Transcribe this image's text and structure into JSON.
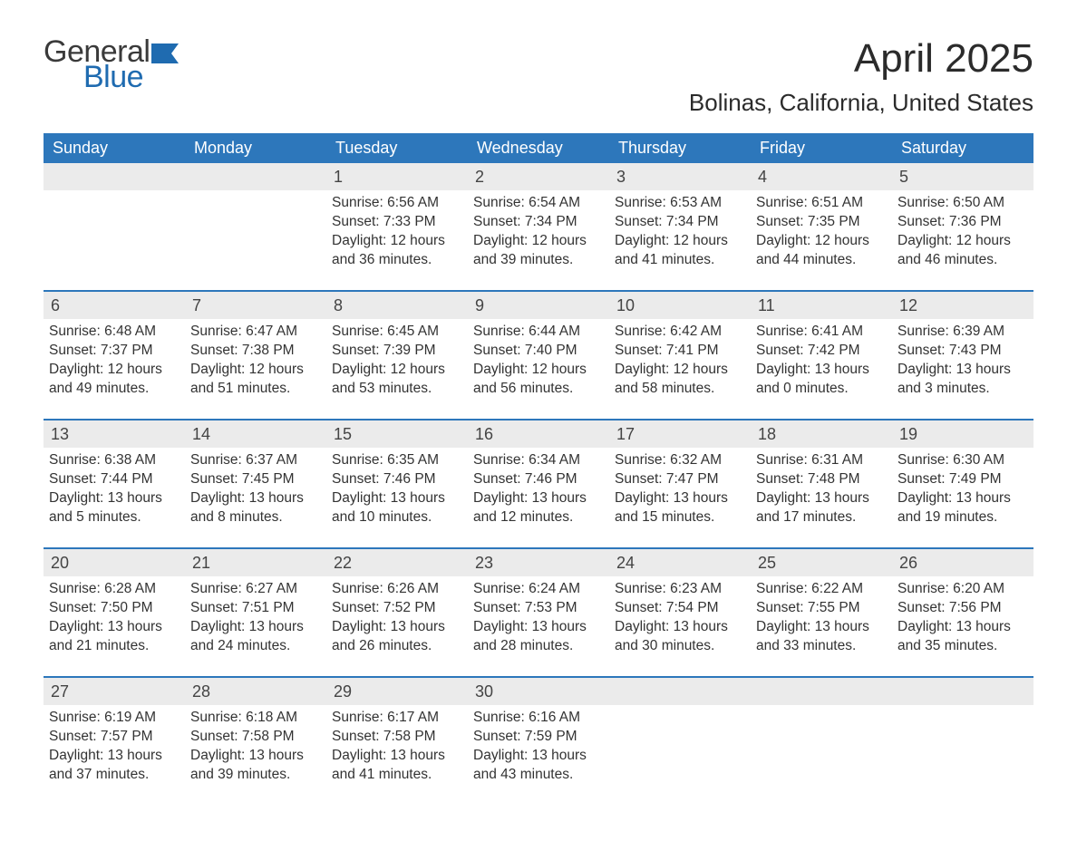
{
  "logo": {
    "text1": "General",
    "text2": "Blue",
    "flag_color": "#1f6bb0"
  },
  "title": "April 2025",
  "location": "Bolinas, California, United States",
  "colors": {
    "header_bg": "#2d77bb",
    "header_text": "#ffffff",
    "row_border": "#2d77bb",
    "daynum_bg": "#ebebeb",
    "body_text": "#333333"
  },
  "weekdays": [
    "Sunday",
    "Monday",
    "Tuesday",
    "Wednesday",
    "Thursday",
    "Friday",
    "Saturday"
  ],
  "weeks": [
    [
      {
        "day": ""
      },
      {
        "day": ""
      },
      {
        "day": "1",
        "sunrise": "Sunrise: 6:56 AM",
        "sunset": "Sunset: 7:33 PM",
        "daylight": "Daylight: 12 hours and 36 minutes."
      },
      {
        "day": "2",
        "sunrise": "Sunrise: 6:54 AM",
        "sunset": "Sunset: 7:34 PM",
        "daylight": "Daylight: 12 hours and 39 minutes."
      },
      {
        "day": "3",
        "sunrise": "Sunrise: 6:53 AM",
        "sunset": "Sunset: 7:34 PM",
        "daylight": "Daylight: 12 hours and 41 minutes."
      },
      {
        "day": "4",
        "sunrise": "Sunrise: 6:51 AM",
        "sunset": "Sunset: 7:35 PM",
        "daylight": "Daylight: 12 hours and 44 minutes."
      },
      {
        "day": "5",
        "sunrise": "Sunrise: 6:50 AM",
        "sunset": "Sunset: 7:36 PM",
        "daylight": "Daylight: 12 hours and 46 minutes."
      }
    ],
    [
      {
        "day": "6",
        "sunrise": "Sunrise: 6:48 AM",
        "sunset": "Sunset: 7:37 PM",
        "daylight": "Daylight: 12 hours and 49 minutes."
      },
      {
        "day": "7",
        "sunrise": "Sunrise: 6:47 AM",
        "sunset": "Sunset: 7:38 PM",
        "daylight": "Daylight: 12 hours and 51 minutes."
      },
      {
        "day": "8",
        "sunrise": "Sunrise: 6:45 AM",
        "sunset": "Sunset: 7:39 PM",
        "daylight": "Daylight: 12 hours and 53 minutes."
      },
      {
        "day": "9",
        "sunrise": "Sunrise: 6:44 AM",
        "sunset": "Sunset: 7:40 PM",
        "daylight": "Daylight: 12 hours and 56 minutes."
      },
      {
        "day": "10",
        "sunrise": "Sunrise: 6:42 AM",
        "sunset": "Sunset: 7:41 PM",
        "daylight": "Daylight: 12 hours and 58 minutes."
      },
      {
        "day": "11",
        "sunrise": "Sunrise: 6:41 AM",
        "sunset": "Sunset: 7:42 PM",
        "daylight": "Daylight: 13 hours and 0 minutes."
      },
      {
        "day": "12",
        "sunrise": "Sunrise: 6:39 AM",
        "sunset": "Sunset: 7:43 PM",
        "daylight": "Daylight: 13 hours and 3 minutes."
      }
    ],
    [
      {
        "day": "13",
        "sunrise": "Sunrise: 6:38 AM",
        "sunset": "Sunset: 7:44 PM",
        "daylight": "Daylight: 13 hours and 5 minutes."
      },
      {
        "day": "14",
        "sunrise": "Sunrise: 6:37 AM",
        "sunset": "Sunset: 7:45 PM",
        "daylight": "Daylight: 13 hours and 8 minutes."
      },
      {
        "day": "15",
        "sunrise": "Sunrise: 6:35 AM",
        "sunset": "Sunset: 7:46 PM",
        "daylight": "Daylight: 13 hours and 10 minutes."
      },
      {
        "day": "16",
        "sunrise": "Sunrise: 6:34 AM",
        "sunset": "Sunset: 7:46 PM",
        "daylight": "Daylight: 13 hours and 12 minutes."
      },
      {
        "day": "17",
        "sunrise": "Sunrise: 6:32 AM",
        "sunset": "Sunset: 7:47 PM",
        "daylight": "Daylight: 13 hours and 15 minutes."
      },
      {
        "day": "18",
        "sunrise": "Sunrise: 6:31 AM",
        "sunset": "Sunset: 7:48 PM",
        "daylight": "Daylight: 13 hours and 17 minutes."
      },
      {
        "day": "19",
        "sunrise": "Sunrise: 6:30 AM",
        "sunset": "Sunset: 7:49 PM",
        "daylight": "Daylight: 13 hours and 19 minutes."
      }
    ],
    [
      {
        "day": "20",
        "sunrise": "Sunrise: 6:28 AM",
        "sunset": "Sunset: 7:50 PM",
        "daylight": "Daylight: 13 hours and 21 minutes."
      },
      {
        "day": "21",
        "sunrise": "Sunrise: 6:27 AM",
        "sunset": "Sunset: 7:51 PM",
        "daylight": "Daylight: 13 hours and 24 minutes."
      },
      {
        "day": "22",
        "sunrise": "Sunrise: 6:26 AM",
        "sunset": "Sunset: 7:52 PM",
        "daylight": "Daylight: 13 hours and 26 minutes."
      },
      {
        "day": "23",
        "sunrise": "Sunrise: 6:24 AM",
        "sunset": "Sunset: 7:53 PM",
        "daylight": "Daylight: 13 hours and 28 minutes."
      },
      {
        "day": "24",
        "sunrise": "Sunrise: 6:23 AM",
        "sunset": "Sunset: 7:54 PM",
        "daylight": "Daylight: 13 hours and 30 minutes."
      },
      {
        "day": "25",
        "sunrise": "Sunrise: 6:22 AM",
        "sunset": "Sunset: 7:55 PM",
        "daylight": "Daylight: 13 hours and 33 minutes."
      },
      {
        "day": "26",
        "sunrise": "Sunrise: 6:20 AM",
        "sunset": "Sunset: 7:56 PM",
        "daylight": "Daylight: 13 hours and 35 minutes."
      }
    ],
    [
      {
        "day": "27",
        "sunrise": "Sunrise: 6:19 AM",
        "sunset": "Sunset: 7:57 PM",
        "daylight": "Daylight: 13 hours and 37 minutes."
      },
      {
        "day": "28",
        "sunrise": "Sunrise: 6:18 AM",
        "sunset": "Sunset: 7:58 PM",
        "daylight": "Daylight: 13 hours and 39 minutes."
      },
      {
        "day": "29",
        "sunrise": "Sunrise: 6:17 AM",
        "sunset": "Sunset: 7:58 PM",
        "daylight": "Daylight: 13 hours and 41 minutes."
      },
      {
        "day": "30",
        "sunrise": "Sunrise: 6:16 AM",
        "sunset": "Sunset: 7:59 PM",
        "daylight": "Daylight: 13 hours and 43 minutes."
      },
      {
        "day": ""
      },
      {
        "day": ""
      },
      {
        "day": ""
      }
    ]
  ]
}
